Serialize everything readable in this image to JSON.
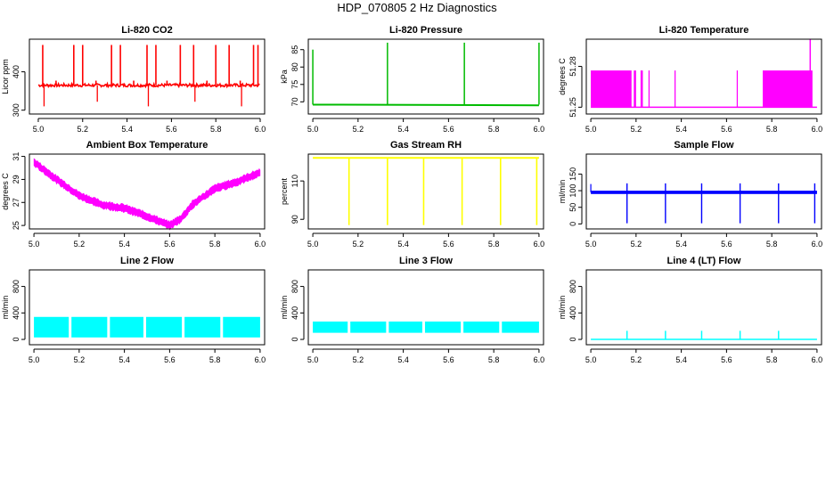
{
  "title": "HDP_070805 2 Hz Diagnostics",
  "chart_data": [
    {
      "type": "line",
      "title": "Li-820 CO2",
      "ylabel": "Licor ppm",
      "color": "#ff0000",
      "xlim": [
        4.96,
        6.02
      ],
      "ylim": [
        290,
        485
      ],
      "xticks": [
        5.0,
        5.2,
        5.4,
        5.6,
        5.8,
        6.0
      ],
      "xtick_labels": [
        "5.0",
        "5.2",
        "5.4",
        "5.6",
        "5.8",
        "6.0"
      ],
      "yticks": [
        300,
        400
      ],
      "ytick_labels": [
        "300",
        "400"
      ],
      "baseline": 365,
      "noise": 4,
      "spike_max": 470,
      "spike_min": 310,
      "spikes": [
        5.02,
        5.08,
        5.16,
        5.2,
        5.26,
        5.33,
        5.37,
        5.43,
        5.49,
        5.53,
        5.58,
        5.64,
        5.7,
        5.76,
        5.8,
        5.86,
        5.91,
        5.97,
        5.99
      ]
    },
    {
      "type": "line",
      "title": "Li-820 Pressure",
      "ylabel": "kPa",
      "color": "#00bb00",
      "xlim": [
        4.98,
        6.02
      ],
      "ylim": [
        66.5,
        88
      ],
      "xticks": [
        5.0,
        5.2,
        5.4,
        5.6,
        5.8,
        6.0
      ],
      "xtick_labels": [
        "5.0",
        "5.2",
        "5.4",
        "5.6",
        "5.8",
        "6.0"
      ],
      "yticks": [
        70,
        75,
        80,
        85
      ],
      "ytick_labels": [
        "70",
        "75",
        "80",
        "85"
      ],
      "baseline": 69.2,
      "spike_max": 87,
      "spikes": [
        5.33,
        5.67,
        6.0
      ]
    },
    {
      "type": "line",
      "title": "Li-820 Temperature",
      "ylabel": "degrees C",
      "color": "#ff00ff",
      "xlim": [
        4.98,
        6.02
      ],
      "ylim": [
        51.245,
        51.3
      ],
      "xticks": [
        5.0,
        5.2,
        5.4,
        5.6,
        5.8,
        6.0
      ],
      "xtick_labels": [
        "5.0",
        "5.2",
        "5.4",
        "5.6",
        "5.8",
        "6.0"
      ],
      "yticks": [
        51.25,
        51.28
      ],
      "ytick_labels": [
        "51.25",
        "51.28"
      ],
      "low": 51.25,
      "high": 51.277,
      "high_segments": [
        [
          5.0,
          5.18
        ],
        [
          5.19,
          5.2
        ],
        [
          5.22,
          5.23
        ],
        [
          5.255,
          5.26
        ],
        [
          5.37,
          5.375
        ],
        [
          5.645,
          5.65
        ],
        [
          5.76,
          5.98
        ]
      ],
      "spike": [
        5.97,
        51.3
      ]
    },
    {
      "type": "line",
      "title": "Ambient Box Temperature",
      "ylabel": "degrees C",
      "color": "#ff00ff",
      "xlim": [
        4.98,
        6.02
      ],
      "ylim": [
        24.7,
        31.2
      ],
      "xticks": [
        5.0,
        5.2,
        5.4,
        5.6,
        5.8,
        6.0
      ],
      "xtick_labels": [
        "5.0",
        "5.2",
        "5.4",
        "5.6",
        "5.8",
        "6.0"
      ],
      "yticks": [
        25,
        27,
        29,
        31
      ],
      "ytick_labels": [
        "25",
        "27",
        "29",
        "31"
      ],
      "curve_x": [
        5.0,
        5.1,
        5.2,
        5.3,
        5.4,
        5.5,
        5.6,
        5.65,
        5.7,
        5.8,
        5.9,
        6.0
      ],
      "curve_y": [
        30.5,
        29.0,
        27.6,
        26.8,
        26.5,
        25.8,
        25.0,
        25.6,
        26.8,
        28.2,
        28.8,
        29.6
      ],
      "band": 0.6
    },
    {
      "type": "line",
      "title": "Gas Stream RH",
      "ylabel": "percent",
      "color": "#ffff00",
      "xlim": [
        4.98,
        6.02
      ],
      "ylim": [
        85,
        124
      ],
      "xticks": [
        5.0,
        5.2,
        5.4,
        5.6,
        5.8,
        6.0
      ],
      "xtick_labels": [
        "5.0",
        "5.2",
        "5.4",
        "5.6",
        "5.8",
        "6.0"
      ],
      "yticks": [
        90,
        110
      ],
      "ytick_labels": [
        "90",
        "110"
      ],
      "baseline": 122,
      "dip_min": 87,
      "spikes": [
        5.16,
        5.33,
        5.49,
        5.66,
        5.83,
        5.99
      ]
    },
    {
      "type": "line",
      "title": "Sample Flow",
      "ylabel": "ml/min",
      "color": "#0000ff",
      "xlim": [
        4.98,
        6.02
      ],
      "ylim": [
        -15,
        210
      ],
      "xticks": [
        5.0,
        5.2,
        5.4,
        5.6,
        5.8,
        6.0
      ],
      "xtick_labels": [
        "5.0",
        "5.2",
        "5.4",
        "5.6",
        "5.8",
        "6.0"
      ],
      "yticks": [
        0,
        50,
        100,
        150
      ],
      "ytick_labels": [
        "0",
        "50",
        "100",
        "150"
      ],
      "baseline": 95,
      "band": 10,
      "dip_min": 2,
      "spike_max": 122,
      "spikes": [
        5.16,
        5.33,
        5.49,
        5.66,
        5.83,
        5.99
      ]
    },
    {
      "type": "line",
      "title": "Line 2 Flow",
      "ylabel": "ml/min",
      "color": "#00ffff",
      "xlim": [
        4.98,
        6.02
      ],
      "ylim": [
        -80,
        1050
      ],
      "xticks": [
        5.0,
        5.2,
        5.4,
        5.6,
        5.8,
        6.0
      ],
      "xtick_labels": [
        "5.0",
        "5.2",
        "5.4",
        "5.6",
        "5.8",
        "6.0"
      ],
      "yticks": [
        0,
        400,
        800
      ],
      "ytick_labels": [
        "0",
        "400",
        "800"
      ],
      "band_low": 30,
      "band_high": 340,
      "gaps": [
        5.16,
        5.33,
        5.49,
        5.66,
        5.83
      ]
    },
    {
      "type": "line",
      "title": "Line 3 Flow",
      "ylabel": "ml/min",
      "color": "#00ffff",
      "xlim": [
        4.98,
        6.02
      ],
      "ylim": [
        -80,
        1050
      ],
      "xticks": [
        5.0,
        5.2,
        5.4,
        5.6,
        5.8,
        6.0
      ],
      "xtick_labels": [
        "5.0",
        "5.2",
        "5.4",
        "5.6",
        "5.8",
        "6.0"
      ],
      "yticks": [
        0,
        400,
        800
      ],
      "ytick_labels": [
        "0",
        "400",
        "800"
      ],
      "band_low": 100,
      "band_high": 270,
      "gaps": [
        5.16,
        5.33,
        5.49,
        5.66,
        5.83
      ]
    },
    {
      "type": "line",
      "title": "Line 4 (LT) Flow",
      "ylabel": "ml/min",
      "color": "#00ffff",
      "xlim": [
        4.98,
        6.02
      ],
      "ylim": [
        -80,
        1050
      ],
      "xticks": [
        5.0,
        5.2,
        5.4,
        5.6,
        5.8,
        6.0
      ],
      "xtick_labels": [
        "5.0",
        "5.2",
        "5.4",
        "5.6",
        "5.8",
        "6.0"
      ],
      "yticks": [
        0,
        400,
        800
      ],
      "ytick_labels": [
        "0",
        "400",
        "800"
      ],
      "baseline": 0,
      "spike_max": 130,
      "spikes": [
        5.16,
        5.33,
        5.49,
        5.66,
        5.83
      ]
    }
  ]
}
